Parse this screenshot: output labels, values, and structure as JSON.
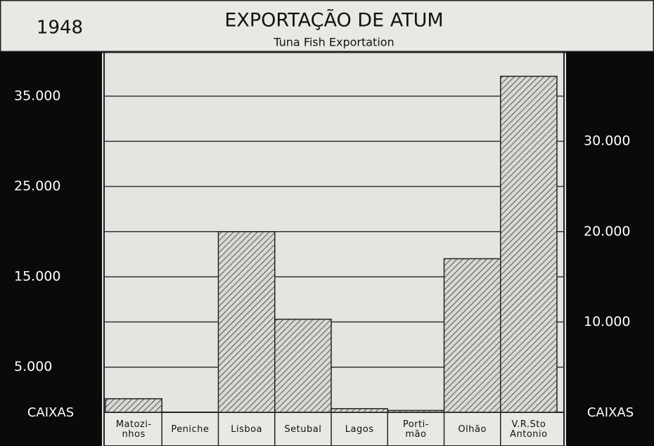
{
  "chart_data": {
    "type": "bar",
    "year": "1948",
    "title": "EXPORTAÇÃO DE ATUM",
    "subtitle": "Tuna Fish Exportation",
    "y_label": "CAIXAS",
    "y2_label": "CAIXAS",
    "categories": [
      "Matozi-\nnhos",
      "Peniche",
      "Lisboa",
      "Setubal",
      "Lagos",
      "Porti-\nmão",
      "Olhão",
      "V.R.Sto\nAntonio"
    ],
    "values": [
      1500,
      0,
      20000,
      10300,
      400,
      200,
      17000,
      37200
    ],
    "color": "#333333",
    "ylim": [
      0,
      40000
    ],
    "yticks": [
      {
        "value": 5000,
        "label": "5.000"
      },
      {
        "value": 15000,
        "label": "15.000"
      },
      {
        "value": 25000,
        "label": "25.000"
      },
      {
        "value": 35000,
        "label": "35.000"
      }
    ],
    "y2lim": [
      0,
      40000
    ],
    "y2ticks": [
      {
        "value": 10000,
        "label": "10.000"
      },
      {
        "value": 20000,
        "label": "20.000"
      },
      {
        "value": 30000,
        "label": "30.000"
      }
    ],
    "grid": true
  }
}
